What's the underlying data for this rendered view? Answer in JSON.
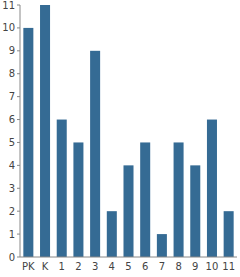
{
  "chart_data": {
    "type": "bar",
    "categories": [
      "PK",
      "K",
      "1",
      "2",
      "3",
      "4",
      "5",
      "6",
      "7",
      "8",
      "9",
      "10",
      "11"
    ],
    "values": [
      10,
      11,
      6,
      5,
      9,
      2,
      4,
      5,
      1,
      5,
      4,
      6,
      2
    ],
    "color": "#356b94",
    "ylim": [
      0,
      11
    ],
    "yticks": [
      0,
      1,
      2,
      3,
      4,
      5,
      6,
      7,
      8,
      9,
      10,
      11
    ],
    "grid": false
  }
}
